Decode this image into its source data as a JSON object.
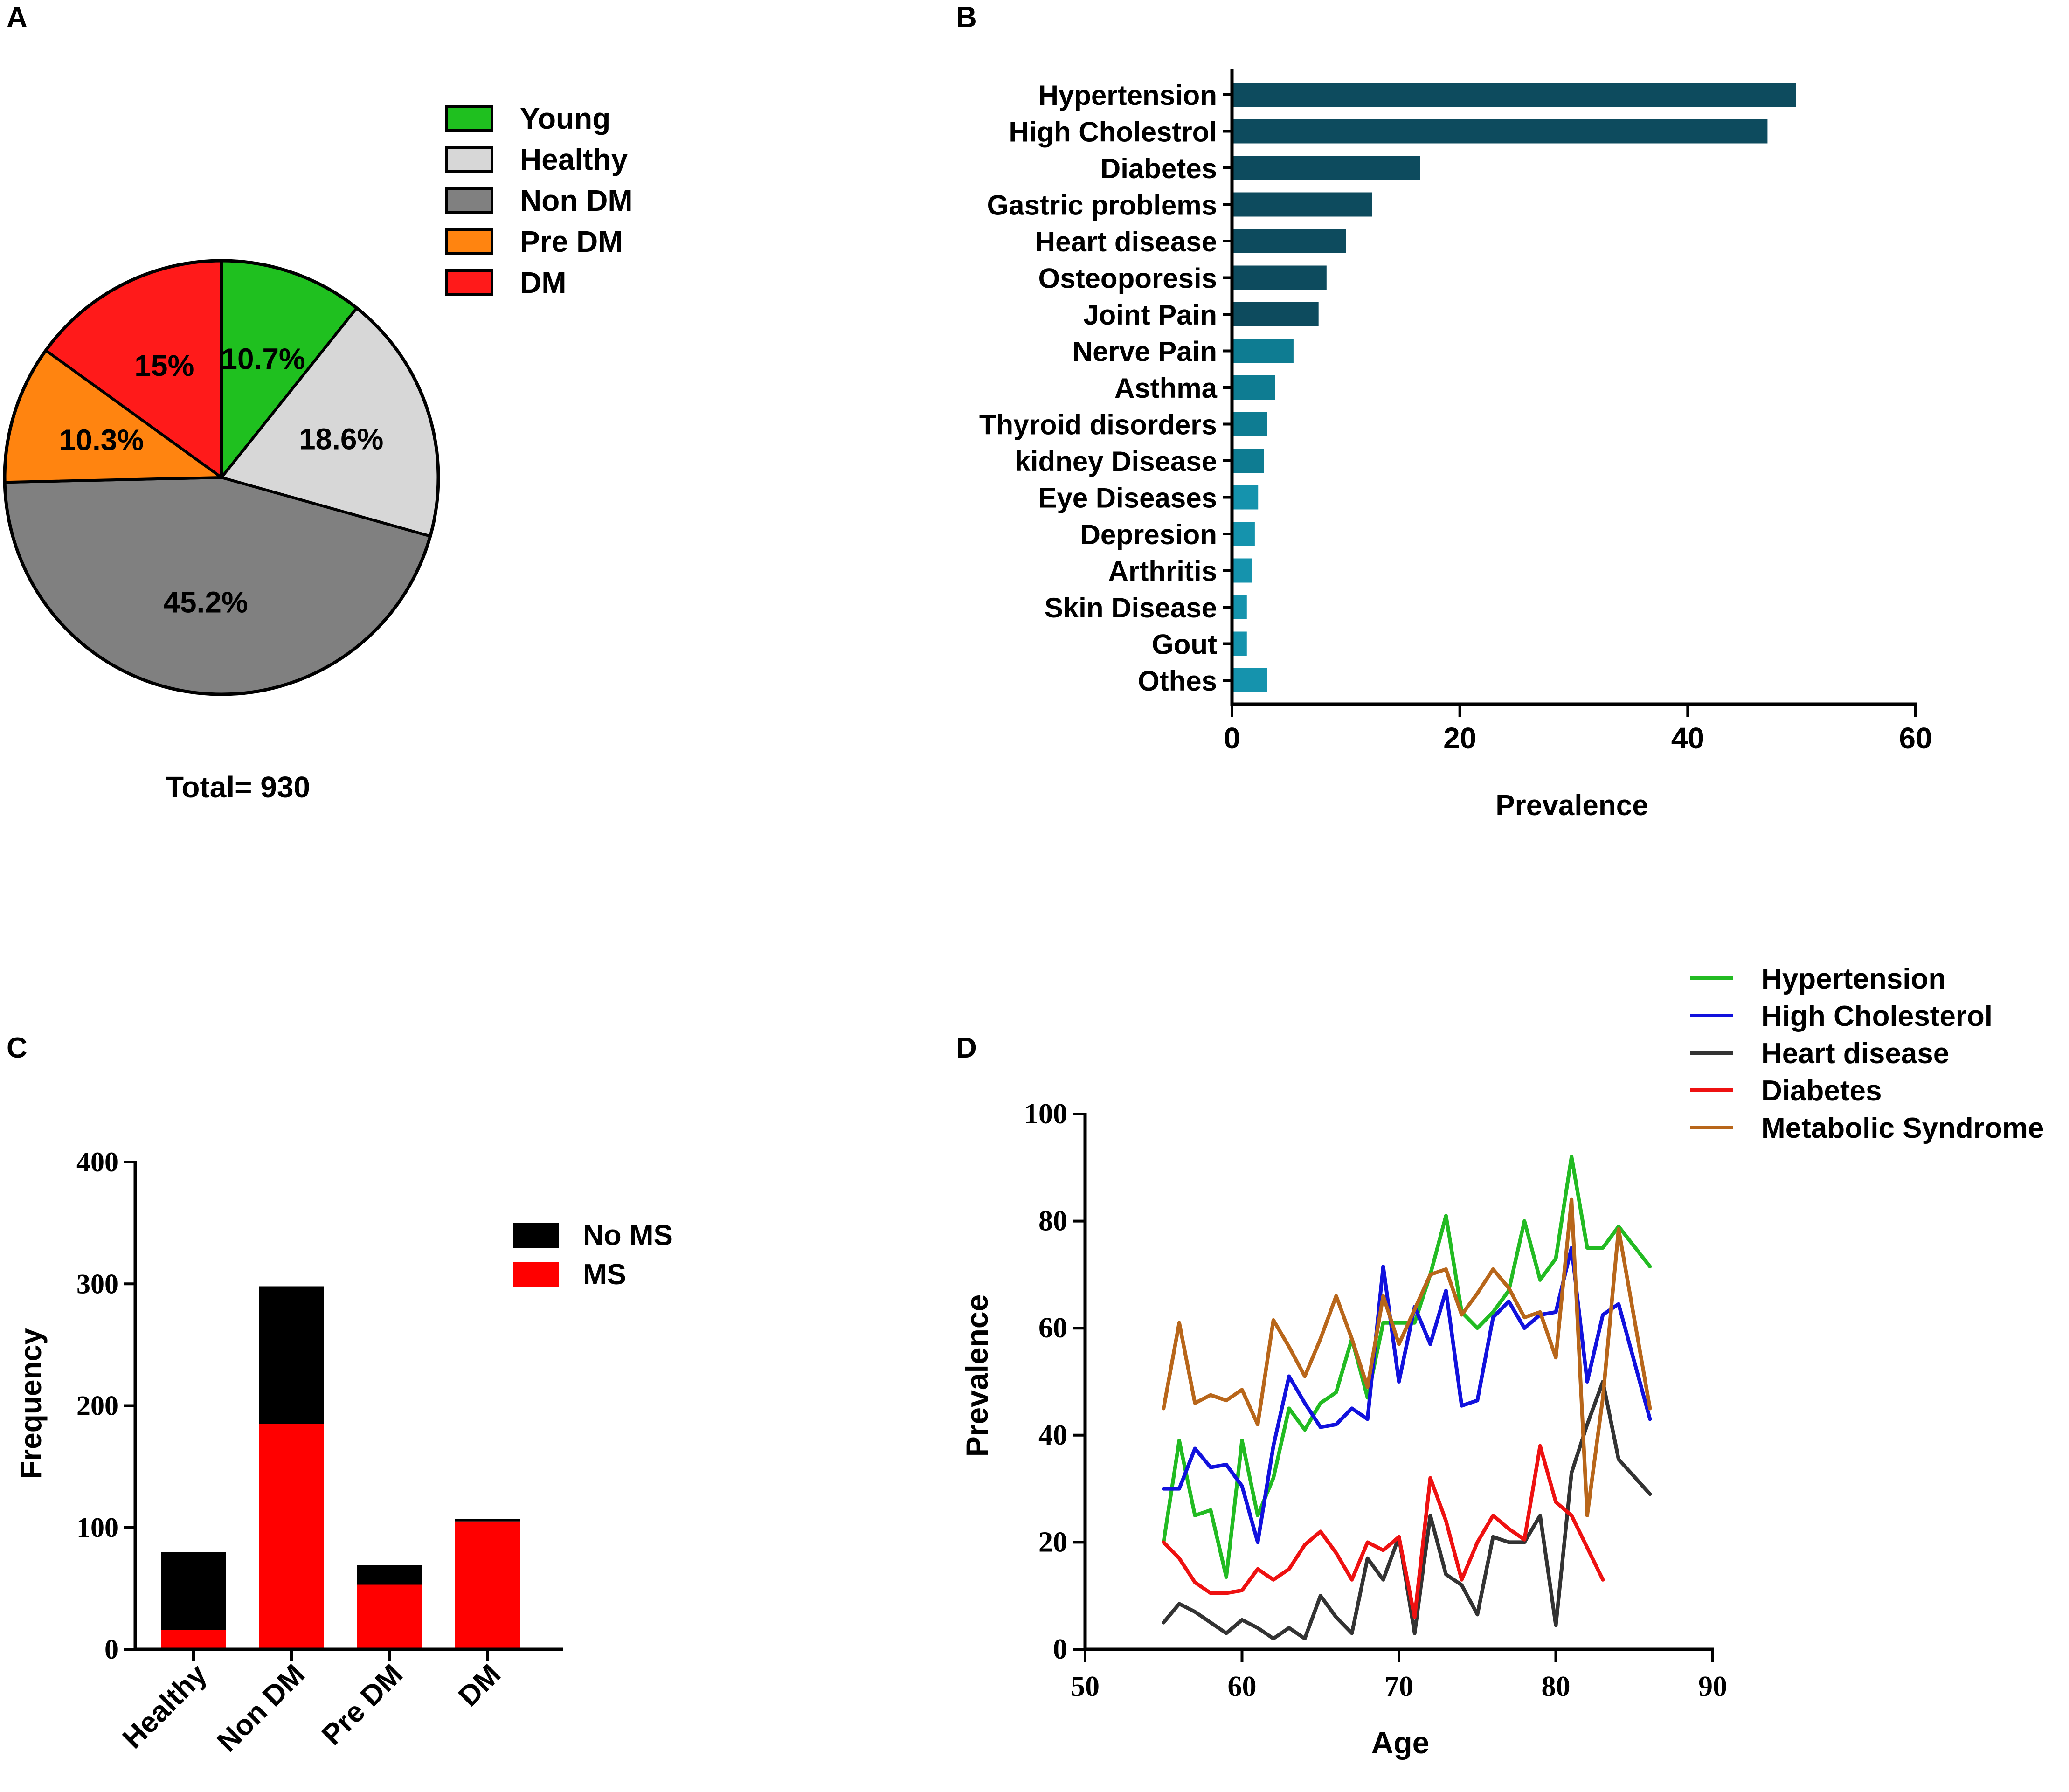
{
  "chart_data": [
    {
      "panel": "A",
      "type": "pie",
      "slices": [
        {
          "label": "Young",
          "value": 10.7,
          "text": "10.7%",
          "color": "#1fc01f"
        },
        {
          "label": "Healthy",
          "value": 18.6,
          "text": "18.6%",
          "color": "#d7d7d7"
        },
        {
          "label": "Non DM",
          "value": 45.2,
          "text": "45.2%",
          "color": "#808080"
        },
        {
          "label": "Pre DM",
          "value": 10.3,
          "text": "10.3%",
          "color": "#ff8410"
        },
        {
          "label": "DM",
          "value": 15,
          "text": "15%",
          "color": "#ff1a1a"
        }
      ],
      "total_label": "Total= 930",
      "legend": [
        "Young",
        "Healthy",
        "Non DM",
        "Pre DM",
        "DM"
      ],
      "legend_position": "top-right"
    },
    {
      "panel": "B",
      "type": "bar",
      "orientation": "horizontal",
      "categories": [
        "Hypertension",
        "High Cholestrol",
        "Diabetes",
        "Gastric problems",
        "Heart disease",
        "Osteoporesis",
        "Joint Pain",
        "Nerve Pain",
        "Asthma",
        "Thyroid disorders",
        "kidney Disease",
        "Eye Diseases",
        "Depresion",
        "Arthritis",
        "Skin Disease",
        "Gout",
        "Othes"
      ],
      "values": [
        49.5,
        47,
        16.5,
        12.3,
        10,
        8.3,
        7.6,
        5.4,
        3.8,
        3.1,
        2.8,
        2.3,
        2,
        1.8,
        1.3,
        1.3,
        3.1
      ],
      "colors": [
        "#0d4b5e",
        "#0d4b5e",
        "#0d4b5e",
        "#0d4b5e",
        "#0d4b5e",
        "#0d4b5e",
        "#0d4b5e",
        "#0e7c92",
        "#0e7c92",
        "#0e7c92",
        "#0e7c92",
        "#1593ad",
        "#1593ad",
        "#1593ad",
        "#1593ad",
        "#1593ad",
        "#1593ad"
      ],
      "xlabel": "Prevalence",
      "xlim": [
        0,
        60
      ],
      "xticks": [
        0,
        20,
        40,
        60
      ]
    },
    {
      "panel": "C",
      "type": "bar",
      "stacked": true,
      "categories": [
        "Healthy",
        "Non DM",
        "Pre DM",
        "DM"
      ],
      "series": [
        {
          "name": "MS",
          "values": [
            16,
            185,
            53,
            105
          ],
          "color": "#ff0000"
        },
        {
          "name": "No MS",
          "values": [
            64,
            113,
            16,
            2
          ],
          "color": "#000000"
        }
      ],
      "legend": [
        "No MS",
        "MS"
      ],
      "ylabel": "Frequency",
      "ylim": [
        0,
        400
      ],
      "yticks": [
        0,
        100,
        200,
        300,
        400
      ]
    },
    {
      "panel": "D",
      "type": "line",
      "xlabel": "Age",
      "ylabel": "Prevalence",
      "xlim": [
        50,
        90
      ],
      "ylim": [
        0,
        100
      ],
      "xticks": [
        50,
        60,
        70,
        80,
        90
      ],
      "yticks": [
        0,
        20,
        40,
        60,
        80,
        100
      ],
      "legend_position": "top-right",
      "series": [
        {
          "name": "Hypertension",
          "color": "#22bb22",
          "x": [
            55,
            56,
            57,
            58,
            59,
            60,
            61,
            62,
            63,
            64,
            65,
            66,
            67,
            68,
            69,
            70,
            71,
            72,
            73,
            74,
            75,
            76,
            77,
            78,
            79,
            80,
            81,
            82,
            83,
            84,
            86
          ],
          "y": [
            20,
            39,
            25,
            26,
            13.5,
            39,
            25,
            32,
            45,
            41,
            46,
            48,
            58,
            47,
            61,
            61,
            61,
            70,
            81,
            63,
            60,
            63,
            67,
            80,
            69,
            73,
            92,
            75,
            75,
            79,
            71.5
          ]
        },
        {
          "name": "High Cholesterol",
          "color": "#1111dd",
          "x": [
            55,
            56,
            57,
            58,
            59,
            60,
            61,
            62,
            63,
            64,
            65,
            66,
            67,
            68,
            69,
            70,
            71,
            72,
            73,
            74,
            75,
            76,
            77,
            78,
            79,
            80,
            81,
            82,
            83,
            84,
            86
          ],
          "y": [
            30,
            30,
            37.5,
            34,
            34.5,
            30.5,
            20,
            38,
            51,
            46,
            41.5,
            42,
            45,
            43,
            71.5,
            50,
            64,
            57,
            67,
            45.5,
            46.5,
            62,
            65,
            60,
            62.5,
            63,
            75,
            50,
            62.5,
            64.5,
            43
          ]
        },
        {
          "name": "Heart disease",
          "color": "#333333",
          "x": [
            55,
            56,
            57,
            58,
            59,
            60,
            61,
            62,
            63,
            64,
            65,
            66,
            67,
            68,
            69,
            70,
            71,
            72,
            73,
            74,
            75,
            76,
            77,
            78,
            79,
            80,
            81,
            82,
            83,
            84,
            86
          ],
          "y": [
            5,
            8.5,
            7,
            5,
            3,
            5.5,
            4,
            2,
            4,
            2,
            10,
            6,
            3,
            17,
            13,
            21,
            3,
            25,
            14,
            12,
            6.5,
            21,
            20,
            20,
            25,
            4.5,
            33,
            42,
            50,
            35.5,
            29
          ]
        },
        {
          "name": "Diabetes",
          "color": "#ee1111",
          "x": [
            55,
            56,
            57,
            58,
            59,
            60,
            61,
            62,
            63,
            64,
            65,
            66,
            67,
            68,
            69,
            70,
            71,
            72,
            73,
            74,
            75,
            76,
            77,
            78,
            79,
            80,
            81,
            82,
            83
          ],
          "y": [
            20,
            17,
            12.5,
            10.5,
            10.5,
            11,
            15,
            13,
            15,
            19.5,
            22,
            18,
            13,
            20,
            18.5,
            21,
            6,
            32,
            24,
            13,
            20,
            25,
            22.5,
            20.5,
            38,
            27.5,
            25,
            19,
            13
          ]
        },
        {
          "name": "Metabolic Syndrome",
          "color": "#b8661a",
          "x": [
            55,
            56,
            57,
            58,
            59,
            60,
            61,
            62,
            63,
            64,
            65,
            66,
            67,
            68,
            69,
            70,
            71,
            72,
            73,
            74,
            75,
            76,
            77,
            78,
            79,
            80,
            81,
            82,
            83,
            84,
            86
          ],
          "y": [
            45,
            61,
            46,
            47.5,
            46.5,
            48.5,
            42,
            61.5,
            56.5,
            51,
            58,
            66,
            58,
            49,
            66,
            57,
            63.5,
            70,
            71,
            62.5,
            66.5,
            71,
            67.5,
            62,
            63,
            54.5,
            84,
            25,
            47,
            78.5,
            45
          ]
        }
      ]
    }
  ],
  "panel_labels": [
    "A",
    "B",
    "C",
    "D"
  ]
}
